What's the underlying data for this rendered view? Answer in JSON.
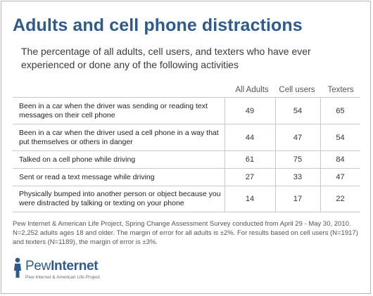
{
  "chart_data": {
    "type": "table",
    "title": "Adults and cell phone distractions",
    "subtitle": "The percentage of all adults, cell users, and texters who have ever experienced or done any of the following activities",
    "columns": [
      "All Adults",
      "Cell users",
      "Texters"
    ],
    "rows": [
      {
        "label": "Been in a car when the driver was sending or reading text messages on their cell phone",
        "values": [
          49,
          54,
          65
        ]
      },
      {
        "label": "Been in a car when the driver used a cell phone in a way that put themselves or others in danger",
        "values": [
          44,
          47,
          54
        ]
      },
      {
        "label": "Talked on a cell phone while driving",
        "values": [
          61,
          75,
          84
        ]
      },
      {
        "label": "Sent or read a text message while driving",
        "values": [
          27,
          33,
          47
        ]
      },
      {
        "label": "Physically bumped into another person or object because you were distracted by talking or texting on your phone",
        "values": [
          14,
          17,
          22
        ]
      }
    ],
    "footnote": "Pew Internet & American Life Project, Spring Change Assessment Survey conducted from April 29 - May 30, 2010. N=2,252 adults ages 18 and older. The margin of error for all adults is ±2%. For results based on cell users (N=1917) and texters (N=1189), the margin of error is ±3%."
  },
  "logo": {
    "name_light": "Pew",
    "name_bold": "Internet",
    "tagline": "Pew Internet & American Life Project"
  },
  "colors": {
    "title": "#2f5b8c",
    "rule": "#c9c9c9"
  }
}
